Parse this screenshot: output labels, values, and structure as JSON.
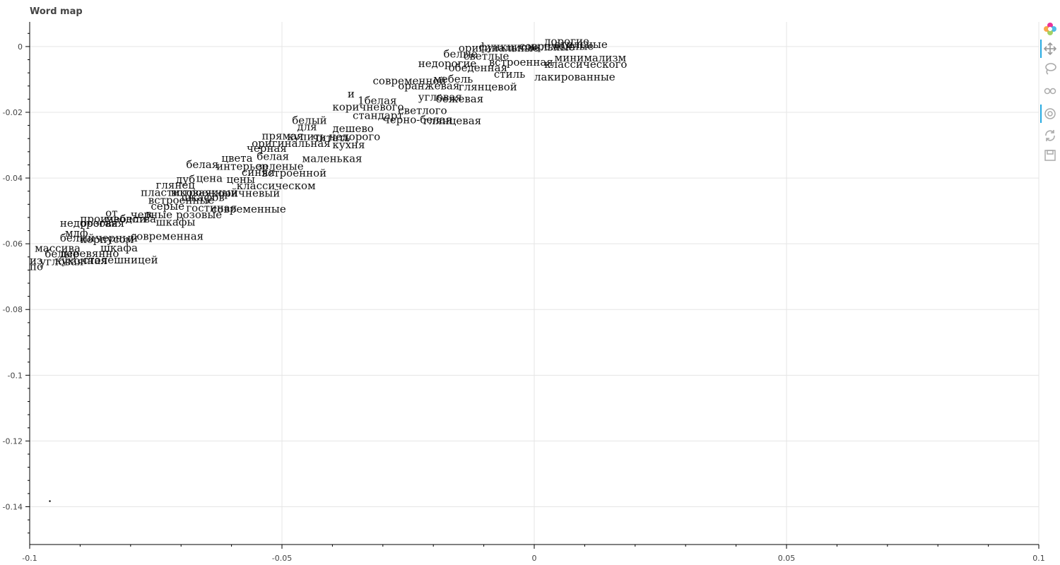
{
  "chart_data": {
    "type": "scatter",
    "title": "Word map",
    "xlabel": "",
    "ylabel": "",
    "xlim": [
      -0.1,
      0.1
    ],
    "ylim": [
      -0.1515,
      0.0075
    ],
    "grid": true,
    "x_ticks": [
      {
        "value": -0.1,
        "label": "-0.1"
      },
      {
        "value": -0.05,
        "label": "-0.05"
      },
      {
        "value": 0,
        "label": "0"
      },
      {
        "value": 0.05,
        "label": "0.05"
      },
      {
        "value": 0.1,
        "label": "0.1"
      }
    ],
    "y_ticks": [
      {
        "value": 0,
        "label": "0"
      },
      {
        "value": -0.02,
        "label": "-0.02"
      },
      {
        "value": -0.04,
        "label": "-0.04"
      },
      {
        "value": -0.06,
        "label": "-0.06"
      },
      {
        "value": -0.08,
        "label": "-0.08"
      },
      {
        "value": -0.1,
        "label": "-0.1"
      },
      {
        "value": -0.12,
        "label": "-0.12"
      },
      {
        "value": -0.14,
        "label": "-0.14"
      }
    ],
    "points": [
      {
        "x": -0.096,
        "y": -0.1383,
        "label": ""
      }
    ],
    "word_labels": [
      {
        "x": 0.002,
        "y": 0.0005,
        "text": "дорогие"
      },
      {
        "x": 0.004,
        "y": -0.0005,
        "text": "стильные"
      },
      {
        "x": -0.003,
        "y": -0.001,
        "text": "современные"
      },
      {
        "x": -0.011,
        "y": -0.0012,
        "text": "функциональные"
      },
      {
        "x": -0.015,
        "y": -0.0015,
        "text": "оригинальные"
      },
      {
        "x": -0.018,
        "y": -0.0033,
        "text": "белые"
      },
      {
        "x": 0.004,
        "y": -0.0045,
        "text": "минимализм"
      },
      {
        "x": -0.014,
        "y": -0.004,
        "text": "светлые"
      },
      {
        "x": -0.023,
        "y": -0.0063,
        "text": "недорогие"
      },
      {
        "x": -0.009,
        "y": -0.0058,
        "text": "встроенная"
      },
      {
        "x": 0.002,
        "y": -0.0065,
        "text": "классического"
      },
      {
        "x": -0.017,
        "y": -0.0075,
        "text": "обеденная"
      },
      {
        "x": 0.0,
        "y": -0.0103,
        "text": "лакированные"
      },
      {
        "x": -0.008,
        "y": -0.0095,
        "text": "стиль"
      },
      {
        "x": -0.02,
        "y": -0.011,
        "text": "мебель"
      },
      {
        "x": -0.032,
        "y": -0.0115,
        "text": "современной"
      },
      {
        "x": -0.027,
        "y": -0.013,
        "text": "оранжевая"
      },
      {
        "x": -0.015,
        "y": -0.0133,
        "text": "глянцевой"
      },
      {
        "x": -0.037,
        "y": -0.0155,
        "text": "и"
      },
      {
        "x": -0.035,
        "y": -0.0175,
        "text": "1белая"
      },
      {
        "x": -0.023,
        "y": -0.0165,
        "text": "угловая"
      },
      {
        "x": -0.0195,
        "y": -0.017,
        "text": "бежевая"
      },
      {
        "x": -0.04,
        "y": -0.0195,
        "text": "коричневого"
      },
      {
        "x": -0.027,
        "y": -0.0205,
        "text": "светлого"
      },
      {
        "x": -0.036,
        "y": -0.022,
        "text": "стандарт"
      },
      {
        "x": -0.048,
        "y": -0.0235,
        "text": "белый"
      },
      {
        "x": -0.03,
        "y": -0.0233,
        "text": "черно-белая"
      },
      {
        "x": -0.022,
        "y": -0.0237,
        "text": "глянцевая"
      },
      {
        "x": -0.047,
        "y": -0.0255,
        "text": "для"
      },
      {
        "x": -0.04,
        "y": -0.026,
        "text": "дешево"
      },
      {
        "x": -0.054,
        "y": -0.0283,
        "text": "прямая"
      },
      {
        "x": -0.049,
        "y": -0.0285,
        "text": "купить недорого"
      },
      {
        "x": -0.044,
        "y": -0.0288,
        "text": "читать"
      },
      {
        "x": -0.056,
        "y": -0.0305,
        "text": "оригинальная"
      },
      {
        "x": -0.04,
        "y": -0.031,
        "text": "кухня"
      },
      {
        "x": -0.057,
        "y": -0.032,
        "text": "черная"
      },
      {
        "x": -0.062,
        "y": -0.035,
        "text": "цвета"
      },
      {
        "x": -0.055,
        "y": -0.0345,
        "text": "белая"
      },
      {
        "x": -0.046,
        "y": -0.0352,
        "text": "маленькая"
      },
      {
        "x": -0.069,
        "y": -0.037,
        "text": "белая"
      },
      {
        "x": -0.063,
        "y": -0.0375,
        "text": "интерьер"
      },
      {
        "x": -0.055,
        "y": -0.0375,
        "text": "зеленые"
      },
      {
        "x": -0.058,
        "y": -0.0393,
        "text": "синяя"
      },
      {
        "x": -0.054,
        "y": -0.0396,
        "text": "встроенной"
      },
      {
        "x": -0.071,
        "y": -0.0415,
        "text": "дуб"
      },
      {
        "x": -0.067,
        "y": -0.0412,
        "text": "цена"
      },
      {
        "x": -0.061,
        "y": -0.0415,
        "text": "цены"
      },
      {
        "x": -0.075,
        "y": -0.0432,
        "text": "глянец"
      },
      {
        "x": -0.059,
        "y": -0.0434,
        "text": "классическом"
      },
      {
        "x": -0.078,
        "y": -0.0455,
        "text": "пластиковая"
      },
      {
        "x": -0.072,
        "y": -0.0455,
        "text": "встроенный"
      },
      {
        "x": -0.064,
        "y": -0.0457,
        "text": "коричневый"
      },
      {
        "x": -0.0765,
        "y": -0.0478,
        "text": "встроенные"
      },
      {
        "x": -0.07,
        "y": -0.047,
        "text": "шкафов"
      },
      {
        "x": -0.076,
        "y": -0.0497,
        "text": "серые"
      },
      {
        "x": -0.069,
        "y": -0.0502,
        "text": "гостиная"
      },
      {
        "x": -0.064,
        "y": -0.0505,
        "text": "современные"
      },
      {
        "x": -0.085,
        "y": -0.0517,
        "text": "от"
      },
      {
        "x": -0.08,
        "y": -0.0522,
        "text": "черные"
      },
      {
        "x": -0.077,
        "y": -0.052,
        "text": "в"
      },
      {
        "x": -0.071,
        "y": -0.0522,
        "text": "розовые"
      },
      {
        "x": -0.09,
        "y": -0.0535,
        "text": "производства"
      },
      {
        "x": -0.085,
        "y": -0.0535,
        "text": "мебели"
      },
      {
        "x": -0.075,
        "y": -0.0545,
        "text": "шкафы"
      },
      {
        "x": -0.094,
        "y": -0.0548,
        "text": "недорогая"
      },
      {
        "x": -0.09,
        "y": -0.0548,
        "text": "розовая"
      },
      {
        "x": -0.093,
        "y": -0.0578,
        "text": "мдф"
      },
      {
        "x": -0.094,
        "y": -0.0593,
        "text": "белый"
      },
      {
        "x": -0.087,
        "y": -0.0593,
        "text": "черный"
      },
      {
        "x": -0.08,
        "y": -0.0588,
        "text": "современная"
      },
      {
        "x": -0.09,
        "y": -0.0598,
        "text": "корпусом"
      },
      {
        "x": -0.099,
        "y": -0.0624,
        "text": "массива"
      },
      {
        "x": -0.086,
        "y": -0.0623,
        "text": "шкафа"
      },
      {
        "x": -0.097,
        "y": -0.0642,
        "text": "белые"
      },
      {
        "x": -0.094,
        "y": -0.064,
        "text": "деревянно"
      },
      {
        "x": -0.1,
        "y": -0.0662,
        "text": "из"
      },
      {
        "x": -0.098,
        "y": -0.0665,
        "text": "угловая"
      },
      {
        "x": -0.095,
        "y": -0.0662,
        "text": "кухонная"
      },
      {
        "x": -0.0895,
        "y": -0.066,
        "text": "столешницей"
      },
      {
        "x": -0.1,
        "y": -0.068,
        "text": "по"
      },
      {
        "x": -0.101,
        "y": -0.0615,
        "text": "в"
      }
    ]
  },
  "toolbar": {
    "tools": [
      "bokeh-logo",
      "pan",
      "lasso-select",
      "wheel-zoom",
      "hover",
      "reset",
      "save"
    ],
    "active": [
      "pan",
      "hover"
    ]
  }
}
